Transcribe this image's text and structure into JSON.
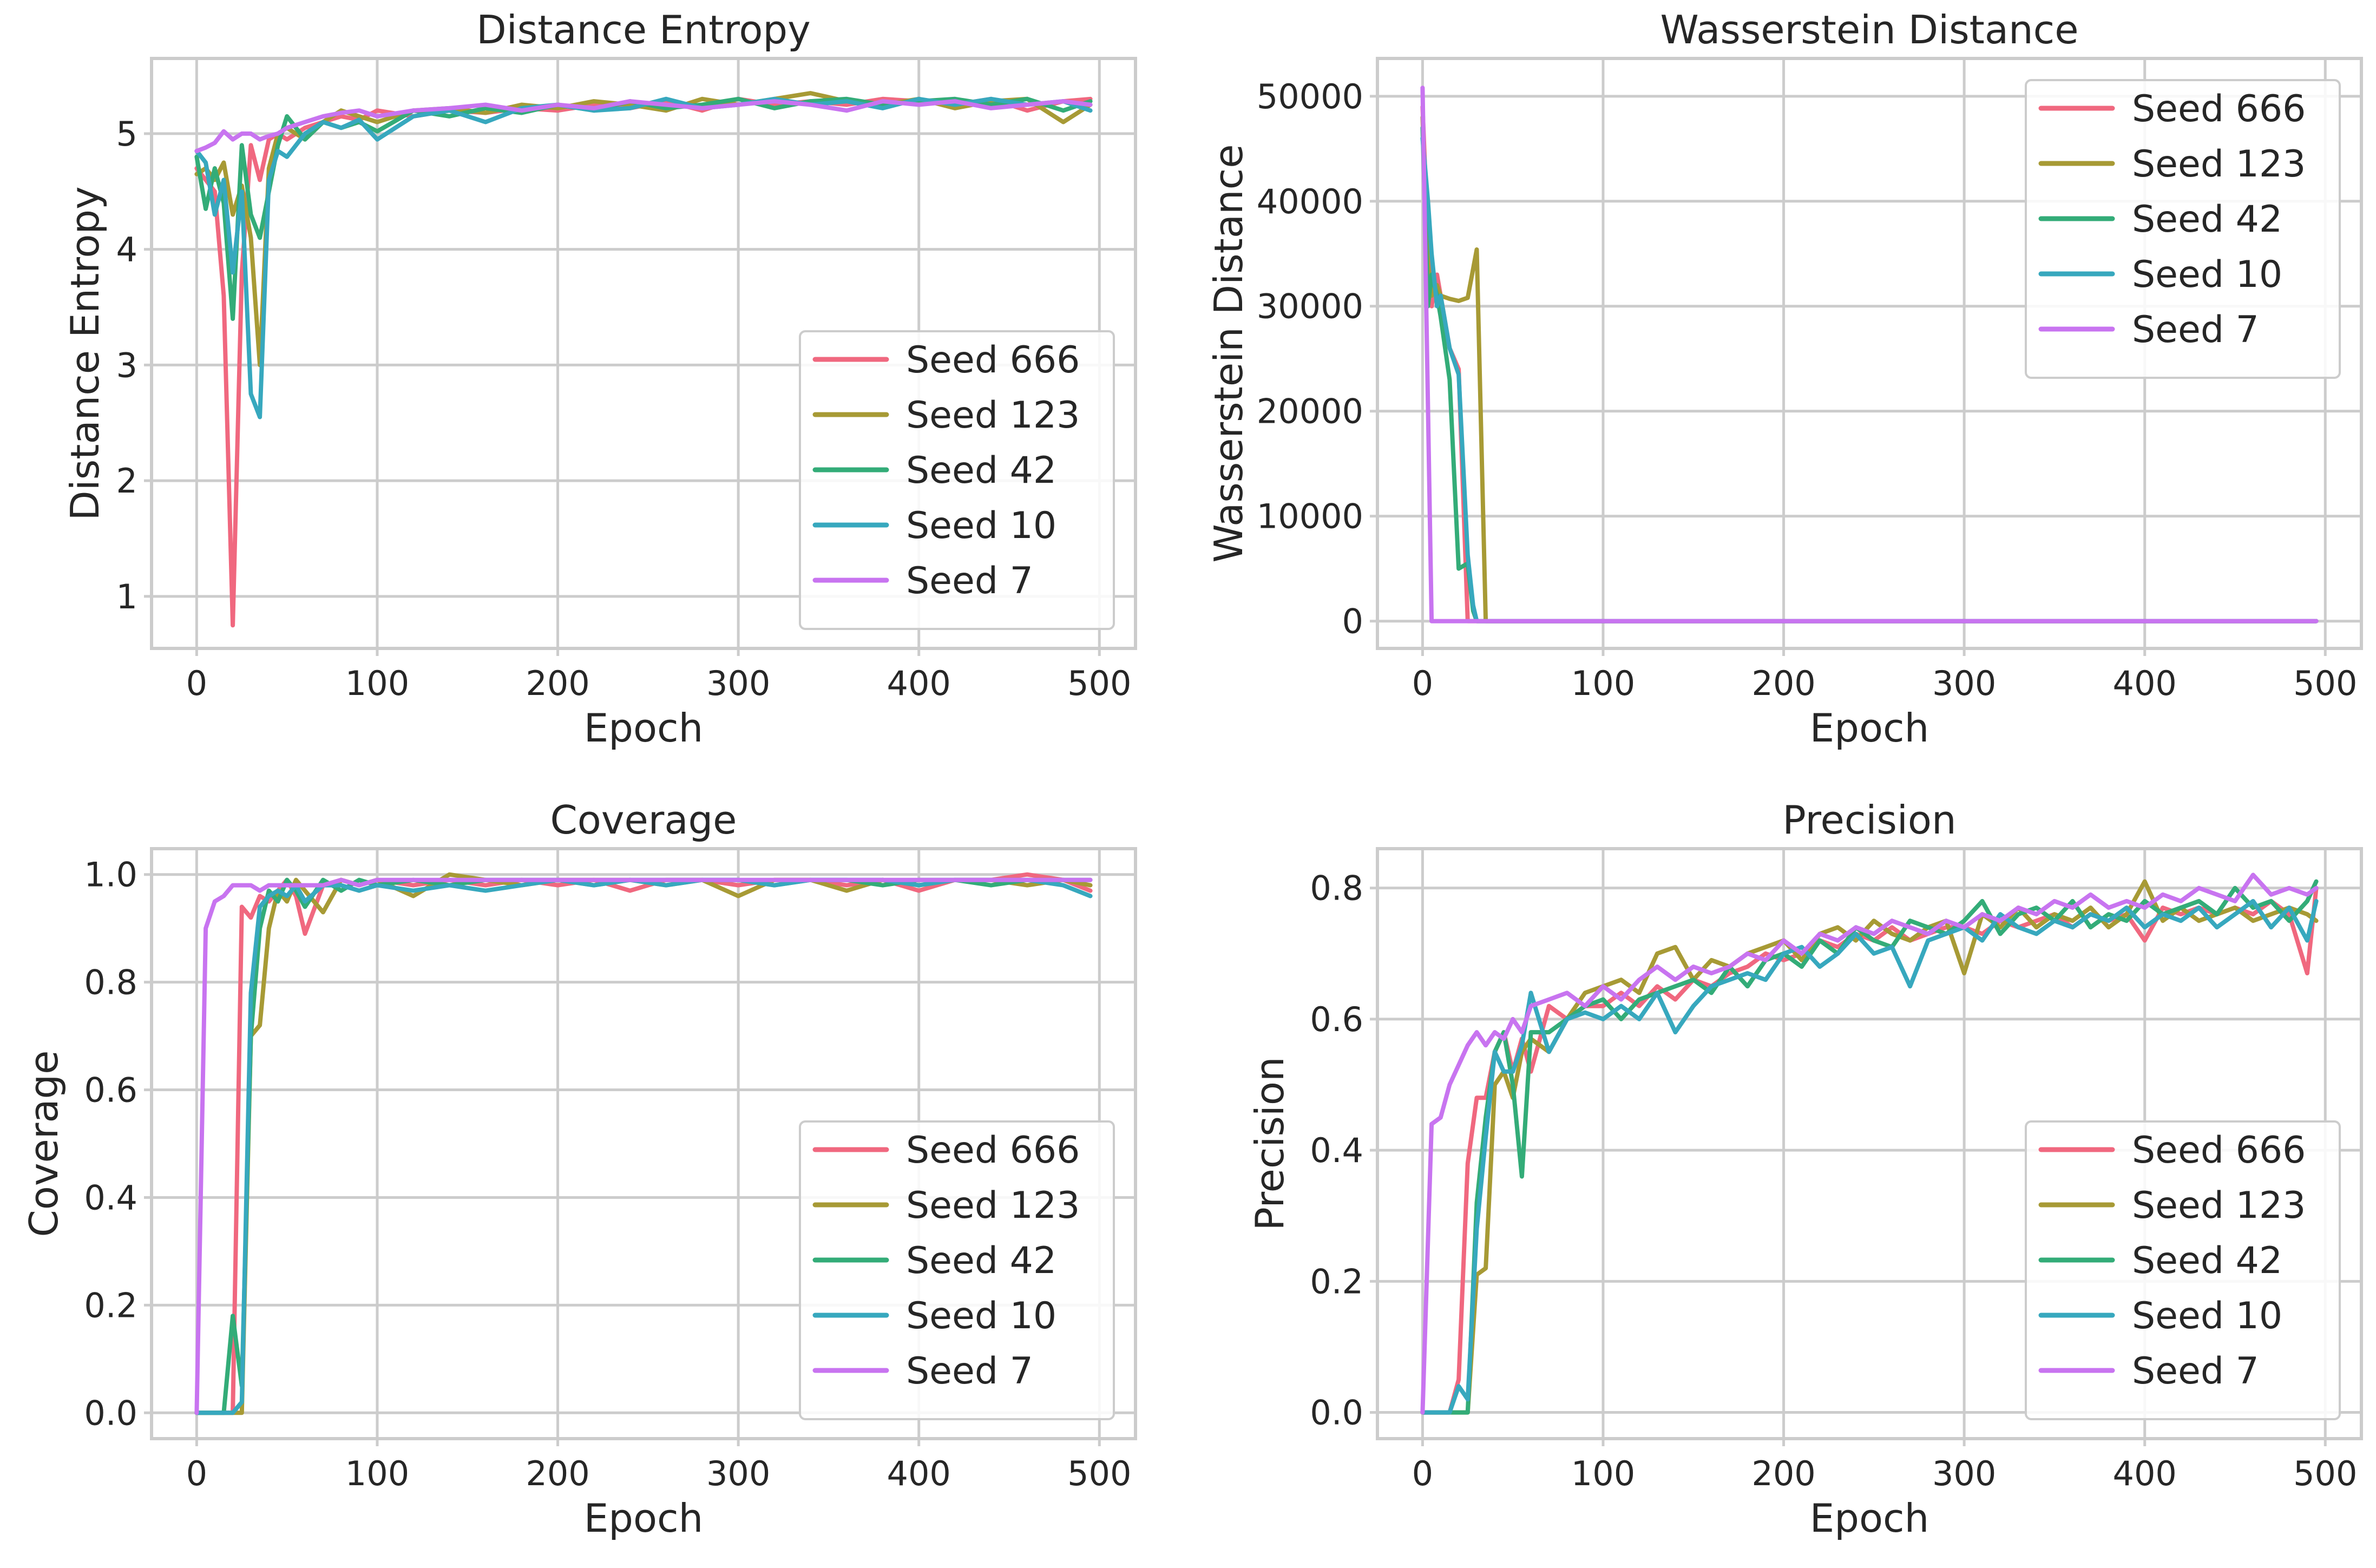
{
  "colors": {
    "Seed 666": "#f0687f",
    "Seed 123": "#a79a35",
    "Seed 42": "#33ac78",
    "Seed 10": "#37a8be",
    "Seed 7": "#c874f0"
  },
  "chart_data": [
    {
      "type": "line",
      "title": "Distance Entropy",
      "xlabel": "Epoch",
      "ylabel": "Distance Entropy",
      "xlim": [
        -25,
        520
      ],
      "ylim": [
        0.55,
        5.65
      ],
      "xticks": [
        0,
        100,
        200,
        300,
        400,
        500
      ],
      "yticks": [
        1,
        2,
        3,
        4,
        5
      ],
      "legend": "lower-right",
      "grid": true,
      "x": [
        0,
        5,
        10,
        15,
        20,
        25,
        30,
        35,
        40,
        45,
        50,
        60,
        70,
        80,
        90,
        100,
        120,
        140,
        160,
        180,
        200,
        220,
        240,
        260,
        280,
        300,
        320,
        340,
        360,
        380,
        400,
        420,
        440,
        460,
        480,
        495
      ],
      "series": [
        {
          "name": "Seed 666",
          "values": [
            4.7,
            4.6,
            4.5,
            3.6,
            0.75,
            3.8,
            4.9,
            4.6,
            4.95,
            5.0,
            4.95,
            5.05,
            5.1,
            5.15,
            5.12,
            5.2,
            5.15,
            5.2,
            5.18,
            5.22,
            5.2,
            5.25,
            5.22,
            5.28,
            5.2,
            5.3,
            5.25,
            5.28,
            5.25,
            5.3,
            5.28,
            5.25,
            5.3,
            5.2,
            5.28,
            5.3
          ]
        },
        {
          "name": "Seed 123",
          "values": [
            4.65,
            4.7,
            4.6,
            4.75,
            4.3,
            4.55,
            4.1,
            3.0,
            4.7,
            5.0,
            5.05,
            4.95,
            5.1,
            5.2,
            5.15,
            5.1,
            5.2,
            5.22,
            5.18,
            5.25,
            5.22,
            5.28,
            5.25,
            5.2,
            5.3,
            5.25,
            5.3,
            5.35,
            5.28,
            5.25,
            5.3,
            5.22,
            5.28,
            5.3,
            5.1,
            5.25
          ]
        },
        {
          "name": "Seed 42",
          "values": [
            4.8,
            4.35,
            4.7,
            4.4,
            3.4,
            4.9,
            4.3,
            4.1,
            4.5,
            4.9,
            5.15,
            4.95,
            5.1,
            5.05,
            5.1,
            5.02,
            5.2,
            5.15,
            5.22,
            5.18,
            5.25,
            5.2,
            5.28,
            5.22,
            5.25,
            5.3,
            5.22,
            5.28,
            5.3,
            5.25,
            5.28,
            5.3,
            5.25,
            5.3,
            5.2,
            5.28
          ]
        },
        {
          "name": "Seed 10",
          "values": [
            4.85,
            4.75,
            4.3,
            4.6,
            3.8,
            4.5,
            2.75,
            2.55,
            4.6,
            4.85,
            4.8,
            5.0,
            5.1,
            5.05,
            5.12,
            4.95,
            5.15,
            5.2,
            5.1,
            5.22,
            5.25,
            5.2,
            5.22,
            5.3,
            5.22,
            5.25,
            5.3,
            5.25,
            5.28,
            5.22,
            5.3,
            5.25,
            5.3,
            5.25,
            5.28,
            5.2
          ]
        },
        {
          "name": "Seed 7",
          "values": [
            4.85,
            4.88,
            4.92,
            5.02,
            4.95,
            5.0,
            5.0,
            4.95,
            4.98,
            5.0,
            5.05,
            5.1,
            5.15,
            5.18,
            5.2,
            5.15,
            5.2,
            5.22,
            5.25,
            5.2,
            5.25,
            5.22,
            5.28,
            5.25,
            5.22,
            5.25,
            5.28,
            5.25,
            5.2,
            5.28,
            5.25,
            5.28,
            5.22,
            5.25,
            5.28,
            5.25
          ]
        }
      ]
    },
    {
      "type": "line",
      "title": "Wasserstein Distance",
      "xlabel": "Epoch",
      "ylabel": "Wasserstein Distance",
      "xlim": [
        -25,
        520
      ],
      "ylim": [
        -2600,
        53600
      ],
      "xticks": [
        0,
        100,
        200,
        300,
        400,
        500
      ],
      "yticks": [
        0,
        10000,
        20000,
        30000,
        40000,
        50000
      ],
      "legend": "upper-right",
      "grid": true,
      "series": [
        {
          "name": "Seed 666",
          "x": [
            0,
            3,
            5,
            8,
            10,
            15,
            20,
            25,
            495
          ],
          "values": [
            49000,
            36000,
            30000,
            33000,
            31000,
            26000,
            24000,
            0,
            0
          ]
        },
        {
          "name": "Seed 123",
          "x": [
            0,
            3,
            5,
            8,
            10,
            15,
            20,
            25,
            30,
            35,
            40,
            495
          ],
          "values": [
            48000,
            34000,
            31000,
            32000,
            31000,
            30700,
            30500,
            30800,
            35400,
            0,
            0,
            0
          ]
        },
        {
          "name": "Seed 42",
          "x": [
            0,
            3,
            5,
            8,
            10,
            15,
            20,
            25,
            28,
            30,
            35,
            495
          ],
          "values": [
            47000,
            30000,
            33000,
            31000,
            29000,
            23000,
            5000,
            5500,
            1000,
            0,
            0,
            0
          ]
        },
        {
          "name": "Seed 10",
          "x": [
            0,
            3,
            5,
            8,
            10,
            15,
            20,
            25,
            28,
            30,
            35,
            495
          ],
          "values": [
            46000,
            40000,
            35000,
            30000,
            31000,
            26000,
            23500,
            6300,
            1500,
            0,
            0,
            0
          ]
        },
        {
          "name": "Seed 7",
          "x": [
            0,
            5,
            10,
            495
          ],
          "values": [
            50800,
            0,
            0,
            0
          ]
        }
      ]
    },
    {
      "type": "line",
      "title": "Coverage",
      "xlabel": "Epoch",
      "ylabel": "Coverage",
      "xlim": [
        -25,
        520
      ],
      "ylim": [
        -0.048,
        1.048
      ],
      "xticks": [
        0,
        100,
        200,
        300,
        400,
        500
      ],
      "yticks": [
        0.0,
        0.2,
        0.4,
        0.6,
        0.8,
        1.0
      ],
      "legend": "lower-right",
      "grid": true,
      "x": [
        0,
        5,
        10,
        15,
        20,
        25,
        30,
        35,
        40,
        45,
        50,
        55,
        60,
        70,
        80,
        90,
        100,
        120,
        140,
        160,
        180,
        200,
        220,
        240,
        260,
        280,
        300,
        320,
        340,
        360,
        380,
        400,
        420,
        440,
        460,
        480,
        495
      ],
      "series": [
        {
          "name": "Seed 666",
          "values": [
            0.0,
            0.0,
            0.0,
            0.0,
            0.0,
            0.94,
            0.92,
            0.96,
            0.95,
            0.97,
            0.99,
            0.96,
            0.89,
            0.98,
            0.99,
            0.98,
            0.99,
            0.98,
            0.99,
            0.98,
            0.99,
            0.98,
            0.99,
            0.97,
            0.99,
            0.99,
            0.98,
            0.99,
            0.99,
            0.98,
            0.99,
            0.97,
            0.99,
            0.99,
            1.0,
            0.99,
            0.97
          ]
        },
        {
          "name": "Seed 123",
          "values": [
            0.0,
            0.0,
            0.0,
            0.0,
            0.0,
            0.0,
            0.7,
            0.72,
            0.9,
            0.97,
            0.95,
            0.99,
            0.97,
            0.93,
            0.99,
            0.98,
            0.99,
            0.96,
            1.0,
            0.99,
            0.98,
            0.99,
            0.99,
            0.99,
            0.98,
            0.99,
            0.96,
            0.99,
            0.99,
            0.97,
            0.99,
            0.98,
            0.99,
            0.99,
            0.98,
            0.99,
            0.98
          ]
        },
        {
          "name": "Seed 42",
          "values": [
            0.0,
            0.0,
            0.0,
            0.0,
            0.18,
            0.05,
            0.7,
            0.9,
            0.97,
            0.95,
            0.99,
            0.97,
            0.94,
            0.99,
            0.97,
            0.99,
            0.98,
            0.99,
            0.98,
            0.99,
            0.99,
            0.99,
            0.98,
            0.99,
            0.99,
            0.99,
            0.99,
            0.98,
            0.99,
            0.99,
            0.98,
            0.99,
            0.99,
            0.98,
            0.99,
            0.99,
            0.99
          ]
        },
        {
          "name": "Seed 10",
          "values": [
            0.0,
            0.0,
            0.0,
            0.0,
            0.0,
            0.02,
            0.78,
            0.94,
            0.96,
            0.97,
            0.96,
            0.98,
            0.95,
            0.98,
            0.98,
            0.97,
            0.98,
            0.97,
            0.98,
            0.97,
            0.98,
            0.99,
            0.98,
            0.99,
            0.98,
            0.99,
            0.99,
            0.98,
            0.99,
            0.99,
            0.99,
            0.98,
            0.99,
            0.99,
            0.99,
            0.98,
            0.96
          ]
        },
        {
          "name": "Seed 7",
          "values": [
            0.0,
            0.9,
            0.95,
            0.96,
            0.98,
            0.98,
            0.98,
            0.97,
            0.98,
            0.98,
            0.98,
            0.98,
            0.98,
            0.98,
            0.99,
            0.98,
            0.99,
            0.99,
            0.99,
            0.99,
            0.99,
            0.99,
            0.99,
            0.99,
            0.99,
            0.99,
            0.99,
            0.99,
            0.99,
            0.99,
            0.99,
            0.99,
            0.99,
            0.99,
            0.99,
            0.99,
            0.99
          ]
        }
      ]
    },
    {
      "type": "line",
      "title": "Precision",
      "xlabel": "Epoch",
      "ylabel": "Precision",
      "xlim": [
        -25,
        520
      ],
      "ylim": [
        -0.04,
        0.86
      ],
      "xticks": [
        0,
        100,
        200,
        300,
        400,
        500
      ],
      "yticks": [
        0.0,
        0.2,
        0.4,
        0.6,
        0.8
      ],
      "legend": "lower-right",
      "grid": true,
      "x": [
        0,
        5,
        10,
        15,
        20,
        25,
        30,
        35,
        40,
        45,
        50,
        55,
        60,
        70,
        80,
        90,
        100,
        110,
        120,
        130,
        140,
        150,
        160,
        170,
        180,
        190,
        200,
        210,
        220,
        230,
        240,
        250,
        260,
        270,
        280,
        290,
        300,
        310,
        320,
        330,
        340,
        350,
        360,
        370,
        380,
        390,
        400,
        410,
        420,
        430,
        440,
        450,
        460,
        470,
        480,
        490,
        495
      ],
      "series": [
        {
          "name": "Seed 666",
          "values": [
            0.0,
            0.0,
            0.0,
            0.0,
            0.05,
            0.38,
            0.48,
            0.48,
            0.55,
            0.58,
            0.52,
            0.57,
            0.52,
            0.62,
            0.6,
            0.62,
            0.62,
            0.64,
            0.62,
            0.65,
            0.63,
            0.66,
            0.65,
            0.67,
            0.68,
            0.7,
            0.69,
            0.7,
            0.72,
            0.71,
            0.73,
            0.72,
            0.74,
            0.72,
            0.73,
            0.74,
            0.74,
            0.73,
            0.75,
            0.74,
            0.75,
            0.76,
            0.74,
            0.76,
            0.75,
            0.76,
            0.72,
            0.77,
            0.76,
            0.77,
            0.76,
            0.77,
            0.76,
            0.78,
            0.76,
            0.67,
            0.8
          ]
        },
        {
          "name": "Seed 123",
          "values": [
            0.0,
            0.0,
            0.0,
            0.0,
            0.0,
            0.0,
            0.21,
            0.22,
            0.5,
            0.52,
            0.48,
            0.55,
            0.57,
            0.55,
            0.6,
            0.64,
            0.65,
            0.66,
            0.64,
            0.7,
            0.71,
            0.66,
            0.69,
            0.68,
            0.7,
            0.71,
            0.72,
            0.69,
            0.73,
            0.74,
            0.72,
            0.75,
            0.73,
            0.72,
            0.74,
            0.75,
            0.67,
            0.76,
            0.74,
            0.77,
            0.74,
            0.76,
            0.75,
            0.77,
            0.74,
            0.76,
            0.81,
            0.75,
            0.77,
            0.75,
            0.76,
            0.77,
            0.75,
            0.76,
            0.77,
            0.76,
            0.75
          ]
        },
        {
          "name": "Seed 42",
          "values": [
            0.0,
            0.0,
            0.0,
            0.0,
            0.0,
            0.0,
            0.32,
            0.45,
            0.55,
            0.58,
            0.5,
            0.36,
            0.58,
            0.58,
            0.6,
            0.62,
            0.63,
            0.6,
            0.63,
            0.64,
            0.65,
            0.66,
            0.64,
            0.68,
            0.65,
            0.69,
            0.7,
            0.68,
            0.72,
            0.7,
            0.74,
            0.72,
            0.71,
            0.75,
            0.74,
            0.73,
            0.75,
            0.78,
            0.73,
            0.76,
            0.77,
            0.75,
            0.78,
            0.74,
            0.76,
            0.75,
            0.78,
            0.76,
            0.77,
            0.78,
            0.76,
            0.8,
            0.77,
            0.78,
            0.75,
            0.78,
            0.81
          ]
        },
        {
          "name": "Seed 10",
          "values": [
            0.0,
            0.0,
            0.0,
            0.0,
            0.04,
            0.02,
            0.28,
            0.42,
            0.55,
            0.52,
            0.52,
            0.56,
            0.64,
            0.55,
            0.6,
            0.61,
            0.6,
            0.62,
            0.6,
            0.64,
            0.58,
            0.62,
            0.65,
            0.66,
            0.67,
            0.66,
            0.7,
            0.71,
            0.68,
            0.7,
            0.73,
            0.7,
            0.71,
            0.65,
            0.72,
            0.73,
            0.74,
            0.72,
            0.76,
            0.74,
            0.73,
            0.75,
            0.74,
            0.76,
            0.75,
            0.77,
            0.74,
            0.76,
            0.75,
            0.77,
            0.74,
            0.76,
            0.78,
            0.74,
            0.77,
            0.72,
            0.78
          ]
        },
        {
          "name": "Seed 7",
          "values": [
            0.0,
            0.44,
            0.45,
            0.5,
            0.53,
            0.56,
            0.58,
            0.56,
            0.58,
            0.57,
            0.6,
            0.58,
            0.62,
            0.63,
            0.64,
            0.62,
            0.65,
            0.63,
            0.66,
            0.68,
            0.66,
            0.68,
            0.67,
            0.68,
            0.7,
            0.69,
            0.72,
            0.7,
            0.73,
            0.72,
            0.74,
            0.73,
            0.75,
            0.74,
            0.73,
            0.75,
            0.74,
            0.76,
            0.75,
            0.77,
            0.76,
            0.78,
            0.77,
            0.79,
            0.77,
            0.78,
            0.77,
            0.79,
            0.78,
            0.8,
            0.79,
            0.78,
            0.82,
            0.79,
            0.8,
            0.79,
            0.8
          ]
        }
      ]
    }
  ]
}
